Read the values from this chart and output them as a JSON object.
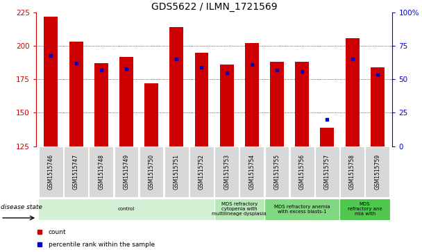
{
  "title": "GDS5622 / ILMN_1721569",
  "samples": [
    "GSM1515746",
    "GSM1515747",
    "GSM1515748",
    "GSM1515749",
    "GSM1515750",
    "GSM1515751",
    "GSM1515752",
    "GSM1515753",
    "GSM1515754",
    "GSM1515755",
    "GSM1515756",
    "GSM1515757",
    "GSM1515758",
    "GSM1515759"
  ],
  "bar_values": [
    222,
    203,
    187,
    192,
    172,
    214,
    195,
    186,
    202,
    188,
    188,
    139,
    206,
    184
  ],
  "percentile_values": [
    193,
    187,
    182,
    183,
    null,
    190,
    184,
    180,
    186,
    182,
    181,
    145,
    190,
    179
  ],
  "bar_color": "#cc0000",
  "percentile_color": "#0000cc",
  "ymin": 125,
  "ymax": 225,
  "yticks": [
    125,
    150,
    175,
    200,
    225
  ],
  "right_yticks_vals": [
    0,
    25,
    50,
    75,
    100
  ],
  "right_yticks_labels": [
    "0",
    "25",
    "50",
    "75",
    "100%"
  ],
  "grid_values": [
    150,
    175,
    200
  ],
  "disease_groups": [
    {
      "label": "control",
      "start": 0,
      "end": 7,
      "color": "#d4f0d4"
    },
    {
      "label": "MDS refractory\ncytopenia with\nmultilineage dysplasia",
      "start": 7,
      "end": 9,
      "color": "#b8e8b8"
    },
    {
      "label": "MDS refractory anemia\nwith excess blasts-1",
      "start": 9,
      "end": 12,
      "color": "#80d880"
    },
    {
      "label": "MDS\nrefractory ane\nmia with",
      "start": 12,
      "end": 14,
      "color": "#50c850"
    }
  ],
  "bar_width": 0.55,
  "bar_bottom": 125,
  "title_fontsize": 10,
  "axis_label_fontsize": 7.5,
  "disease_state_label": "disease state",
  "legend_items": [
    {
      "color": "#cc0000",
      "label": "count"
    },
    {
      "color": "#0000cc",
      "label": "percentile rank within the sample"
    }
  ]
}
